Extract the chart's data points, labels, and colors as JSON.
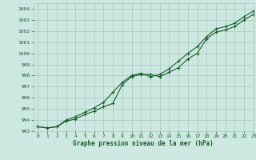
{
  "xlabel": "Graphe pression niveau de la mer (hPa)",
  "bg_color": "#cce8e0",
  "grid_color": "#a8c8bc",
  "line_color": "#1a5c2a",
  "xlim": [
    -0.5,
    23
  ],
  "ylim": [
    993,
    1004.5
  ],
  "xticks": [
    0,
    1,
    2,
    3,
    4,
    5,
    6,
    7,
    8,
    9,
    10,
    11,
    12,
    13,
    14,
    15,
    16,
    17,
    18,
    19,
    20,
    21,
    22,
    23
  ],
  "yticks": [
    993,
    994,
    995,
    996,
    997,
    998,
    999,
    1000,
    1001,
    1002,
    1003,
    1004
  ],
  "series1_x": [
    0,
    1,
    2,
    3,
    4,
    5,
    6,
    7,
    8,
    9,
    10,
    11,
    12,
    13,
    14,
    15,
    16,
    17,
    18,
    19,
    20,
    21,
    22,
    23
  ],
  "series1_y": [
    993.4,
    993.3,
    993.4,
    993.9,
    994.1,
    994.5,
    994.8,
    995.2,
    995.5,
    997.2,
    997.9,
    998.1,
    998.1,
    997.9,
    998.3,
    998.7,
    999.5,
    1000.0,
    1001.3,
    1001.9,
    1002.1,
    1002.4,
    1003.0,
    1003.5
  ],
  "series2_x": [
    0,
    1,
    2,
    3,
    4,
    5,
    6,
    7,
    8,
    9,
    10,
    11,
    12,
    13,
    14,
    15,
    16,
    17,
    18,
    19,
    20,
    21,
    22,
    23
  ],
  "series2_y": [
    993.4,
    993.3,
    993.4,
    994.0,
    994.3,
    994.7,
    995.1,
    995.6,
    996.5,
    997.4,
    998.0,
    998.2,
    997.9,
    998.1,
    998.6,
    999.3,
    1000.0,
    1000.6,
    1001.5,
    1002.2,
    1002.4,
    1002.7,
    1003.3,
    1003.8
  ]
}
